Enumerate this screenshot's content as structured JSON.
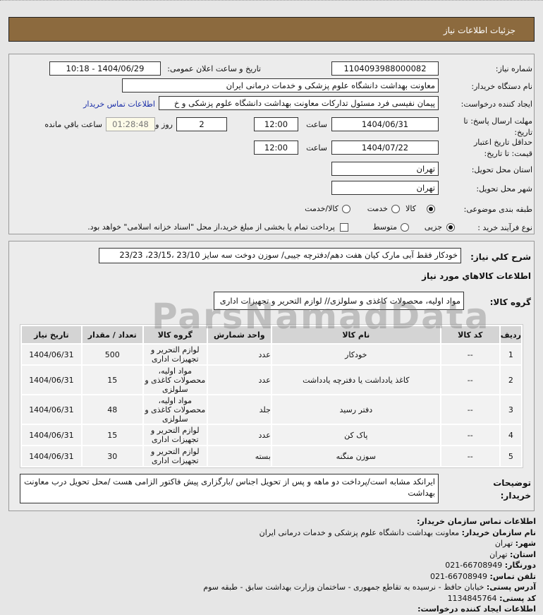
{
  "header": {
    "title": "جزئیات اطلاعات نیاز"
  },
  "info": {
    "need_number_label": "شماره نیاز:",
    "need_number": "1104093988000082",
    "announce_label": "تاریخ و ساعت اعلان عمومی:",
    "announce_value": "1404/06/29 - 10:18",
    "buyer_org_label": "نام دستگاه خریدار:",
    "buyer_org": "معاونت بهداشت دانشگاه علوم پزشکی و خدمات درمانی ایران",
    "creator_label": "ایجاد کننده درخواست:",
    "creator": "پیمان نفیسی فرد مسئول تدارکات  معاونت بهداشت دانشگاه علوم پزشکی و خ",
    "contact_link": "اطلاعات تماس خریدار",
    "deadline_label": "مهلت ارسال پاسخ: تا تاریخ:",
    "deadline_date": "1404/06/31",
    "time_label": "ساعت",
    "deadline_time": "12:00",
    "days": "2",
    "days_label": "روز و",
    "countdown": "01:28:48",
    "remaining_label": "ساعت باقي مانده",
    "validity_label": "حداقل تاریخ اعتبار قیمت: تا تاریخ:",
    "validity_date": "1404/07/22",
    "validity_time": "12:00",
    "province_label": "استان محل تحویل:",
    "province": "تهران",
    "city_label": "شهر محل تحویل:",
    "city": "تهران",
    "category_label": "طبقه بندی موضوعی:",
    "category_options": [
      "کالا",
      "خدمت",
      "کالا/خدمت"
    ],
    "category_selected": "کالا",
    "process_label": "نوع فرآیند خرید :",
    "process_options": [
      "جزیی",
      "متوسط"
    ],
    "process_selected": "جزیی",
    "payment_note": "پرداخت تمام یا بخشی از مبلغ خرید،از محل \"اسناد خزانه اسلامی\" خواهد بود."
  },
  "summary": {
    "label": "شرح کلي نياز:",
    "value": "خودکار فقط آبی مارک کیان هفت دهم/دفترچه جیبی/ سوزن دوخت سه سایز 23/10 ،23/15، 23/23"
  },
  "goods": {
    "heading": "اطلاعات کالاهاي مورد نياز",
    "group_label": "گروه کالا:",
    "group_value": "مواد اولیه، محصولات کاغذی و سلولزی// لوازم التحریر و تجهیزات اداری",
    "columns": [
      "ردیف",
      "کد کالا",
      "نام کالا",
      "واحد شمارش",
      "گروه کالا",
      "تعداد / مقدار",
      "تاریخ نیاز"
    ],
    "rows": [
      [
        "1",
        "--",
        "خودکار",
        "عدد",
        "لوازم التحریر و تجهیزات اداری",
        "500",
        "1404/06/31"
      ],
      [
        "2",
        "--",
        "کاغذ یادداشت یا دفترچه یادداشت",
        "عدد",
        "مواد اولیه، محصولات کاغذی و سلولزی",
        "15",
        "1404/06/31"
      ],
      [
        "3",
        "--",
        "دفتر رسید",
        "جلد",
        "مواد اولیه، محصولات کاغذی و سلولزی",
        "48",
        "1404/06/31"
      ],
      [
        "4",
        "--",
        "پاک کن",
        "عدد",
        "لوازم التحریر و تجهیزات اداری",
        "15",
        "1404/06/31"
      ],
      [
        "5",
        "--",
        "سوزن منگنه",
        "بسته",
        "لوازم التحریر و تجهیزات اداری",
        "30",
        "1404/06/31"
      ]
    ]
  },
  "notes": {
    "label": "توضیحات خریدار:",
    "value": "ایرانکد مشابه است/پرداخت دو ماهه و پس از تحویل اجناس /بارگزاری پیش فاکتور الزامی هست /محل تحویل درب معاونت بهداشت"
  },
  "contact": {
    "heading": "اطلاعات تماس سازمان خریدار:",
    "org_label": "نام سازمان خریدار:",
    "org": "معاونت بهداشت دانشگاه علوم پزشکی و خدمات درمانی ایران",
    "city_label": "شهر:",
    "city": "تهران",
    "province_label": "استان:",
    "province": "تهران",
    "fax_label": "دورنگار:",
    "fax": "66708949-021",
    "phone_label": "تلفن تماس:",
    "phone": "66708949-021",
    "address_label": "آدرس پستی:",
    "address": "خیابان حافظ - نرسیده به تقاطع جمهوری - ساختمان وزارت بهداشت سابق - طبقه سوم",
    "postal_label": "کد پستی:",
    "postal": "1134845764",
    "creator_heading": "اطلاعات ایجاد کننده درخواست:"
  },
  "watermark": "ParsNamadData"
}
